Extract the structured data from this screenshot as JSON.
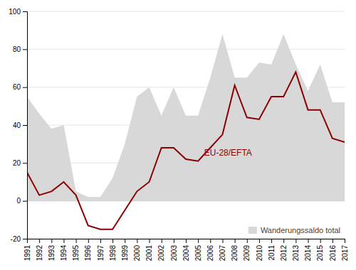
{
  "chart_data": {
    "type": "line",
    "x": [
      1991,
      1992,
      1993,
      1994,
      1995,
      1996,
      1997,
      1998,
      1999,
      2000,
      2001,
      2002,
      2003,
      2004,
      2005,
      2006,
      2007,
      2008,
      2009,
      2010,
      2011,
      2012,
      2013,
      2014,
      2015,
      2016,
      2017
    ],
    "series": [
      {
        "name": "Wanderungssaldo total",
        "type": "area",
        "color": "#d8d8d8",
        "values": [
          55,
          46,
          38,
          40,
          5,
          2,
          2,
          12,
          30,
          55,
          60,
          45,
          60,
          45,
          45,
          65,
          88,
          65,
          65,
          73,
          72,
          88,
          72,
          58,
          72,
          52,
          52
        ]
      },
      {
        "type": "line",
        "color": "#8B0000",
        "values": [
          15,
          3,
          5,
          10,
          3,
          -13,
          -15,
          -15,
          -5,
          5,
          10,
          28,
          28,
          22,
          21,
          28,
          35,
          61,
          44,
          43,
          55,
          55,
          68,
          48,
          48,
          33,
          31
        ]
      }
    ],
    "annotations": [
      {
        "text": "EU-28/EFTA",
        "x": 2005.5,
        "y": 24,
        "color": "#8B0000"
      }
    ],
    "xlim": [
      1991,
      2017
    ],
    "xticks": [
      1991,
      1992,
      1993,
      1994,
      1995,
      1996,
      1997,
      1998,
      1999,
      2000,
      2001,
      2002,
      2003,
      2004,
      2005,
      2006,
      2007,
      2008,
      2009,
      2010,
      2011,
      2012,
      2013,
      2014,
      2015,
      2016,
      2017
    ],
    "ylim": [
      -20,
      100
    ],
    "yticks": [
      -20,
      0,
      20,
      40,
      60,
      80,
      100
    ],
    "grid": true,
    "legend": "lower right"
  }
}
